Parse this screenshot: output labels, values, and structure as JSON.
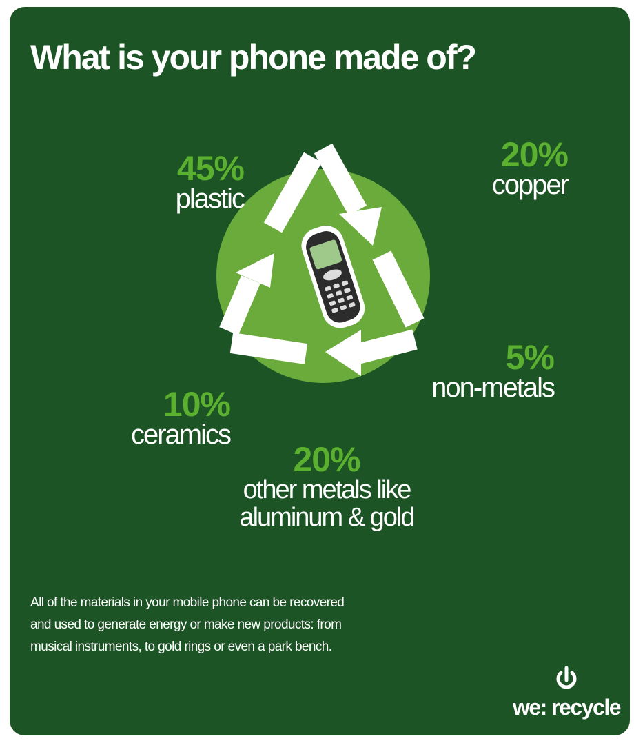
{
  "title": "What is your phone made of?",
  "materials": [
    {
      "percent": "45%",
      "label": "plastic"
    },
    {
      "percent": "20%",
      "label": "copper"
    },
    {
      "percent": "5%",
      "label": "non-metals"
    },
    {
      "percent": "10%",
      "label": "ceramics"
    },
    {
      "percent": "20%",
      "label_line1": "other metals like",
      "label_line2": "aluminum & gold"
    }
  ],
  "footnote": {
    "line1": "All of the materials in your mobile phone can be recovered",
    "line2": "and used to generate energy or make new products: from",
    "line3": "musical instruments, to gold rings or even a park bench."
  },
  "brand": {
    "name": "we: recycle",
    "icon": "power-icon"
  },
  "icons": {
    "center": "recycle-icon",
    "phone": "mobile-phone-icon"
  },
  "colors": {
    "background": "#1c5426",
    "circle": "#6aab3c",
    "accent_green": "#5cb030",
    "text": "#ffffff"
  }
}
